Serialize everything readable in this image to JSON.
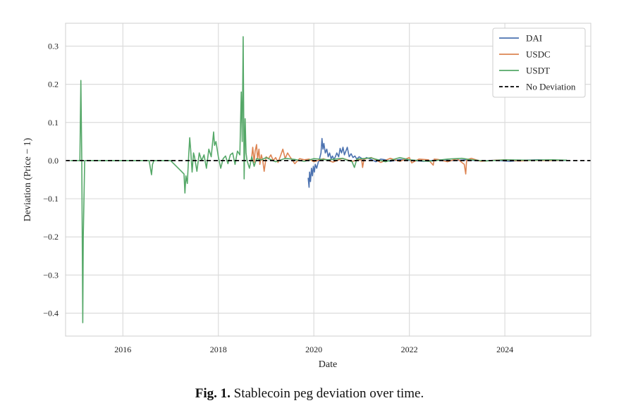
{
  "chart_data": {
    "type": "line",
    "title": "",
    "xlabel": "Date",
    "ylabel": "Deviation (Price − 1)",
    "xlim": [
      2014.8,
      2025.8
    ],
    "ylim": [
      -0.46,
      0.36
    ],
    "x_ticks": [
      2016,
      2018,
      2020,
      2022,
      2024
    ],
    "y_ticks": [
      0.3,
      0.2,
      0.1,
      0.0,
      -0.1,
      -0.2,
      -0.3,
      -0.4
    ],
    "y_tick_labels": [
      "0.3",
      "0.2",
      "0.1",
      "0.0",
      "−0.1",
      "−0.2",
      "−0.3",
      "−0.4"
    ],
    "grid": true,
    "legend_position": "top-right",
    "series": [
      {
        "name": "DAI",
        "color": "#4c72b0",
        "x": [
          2019.88,
          2019.9,
          2019.91,
          2019.93,
          2019.95,
          2019.97,
          2019.99,
          2020.01,
          2020.03,
          2020.06,
          2020.09,
          2020.12,
          2020.15,
          2020.17,
          2020.19,
          2020.21,
          2020.24,
          2020.27,
          2020.3,
          2020.33,
          2020.36,
          2020.39,
          2020.42,
          2020.45,
          2020.48,
          2020.52,
          2020.55,
          2020.58,
          2020.61,
          2020.64,
          2020.67,
          2020.7,
          2020.74,
          2020.78,
          2020.82,
          2020.86,
          2020.9,
          2020.95,
          2021.0,
          2021.05,
          2021.1,
          2021.2,
          2021.3,
          2021.4,
          2021.5,
          2021.6,
          2021.8,
          2022.0,
          2022.3,
          2022.6,
          2022.9,
          2023.2,
          2023.5,
          2023.8,
          2024.1,
          2024.4,
          2024.7,
          2025.0,
          2025.3
        ],
        "y": [
          -0.045,
          -0.07,
          -0.03,
          -0.055,
          -0.02,
          -0.04,
          -0.015,
          -0.03,
          -0.01,
          -0.02,
          -0.005,
          0.005,
          0.02,
          0.058,
          0.03,
          0.045,
          0.02,
          0.03,
          0.01,
          0.02,
          0.005,
          0.012,
          0.003,
          0.01,
          0.02,
          0.01,
          0.032,
          0.02,
          0.035,
          0.015,
          0.025,
          0.035,
          0.01,
          0.018,
          0.008,
          0.012,
          0.004,
          0.01,
          0.006,
          0.002,
          0.008,
          0.003,
          -0.003,
          0.004,
          0.002,
          -0.002,
          0.003,
          0.001,
          -0.002,
          0.002,
          0.0,
          0.002,
          -0.001,
          0.001,
          -0.002,
          0.001,
          0.002,
          0.0,
          0.001
        ]
      },
      {
        "name": "USDC",
        "color": "#dd8452",
        "x": [
          2018.7,
          2018.72,
          2018.75,
          2018.77,
          2018.8,
          2018.82,
          2018.85,
          2018.87,
          2018.9,
          2018.93,
          2018.96,
          2019.0,
          2019.05,
          2019.1,
          2019.15,
          2019.2,
          2019.25,
          2019.3,
          2019.35,
          2019.4,
          2019.45,
          2019.5,
          2019.6,
          2019.7,
          2019.8,
          2019.9,
          2020.0,
          2020.2,
          2020.4,
          2020.6,
          2020.8,
          2021.0,
          2021.02,
          2021.05,
          2021.2,
          2021.4,
          2021.6,
          2021.8,
          2022.0,
          2022.05,
          2022.2,
          2022.4,
          2022.5,
          2022.52,
          2022.6,
          2022.8,
          2023.0,
          2023.15,
          2023.18,
          2023.2,
          2023.3,
          2023.5,
          2023.8,
          2024.0,
          2024.3,
          2024.6,
          2024.9,
          2025.2
        ],
        "y": [
          0.01,
          0.035,
          -0.005,
          0.025,
          0.042,
          0.005,
          0.03,
          -0.01,
          0.015,
          0.0,
          -0.028,
          0.01,
          0.005,
          0.015,
          0.0,
          0.008,
          -0.005,
          0.012,
          0.03,
          0.005,
          0.02,
          0.01,
          -0.008,
          0.005,
          0.002,
          0.004,
          -0.003,
          0.005,
          -0.004,
          0.006,
          -0.002,
          0.003,
          -0.018,
          0.004,
          0.008,
          -0.005,
          0.006,
          -0.002,
          0.008,
          -0.006,
          0.004,
          0.002,
          -0.012,
          0.004,
          0.003,
          -0.003,
          0.005,
          -0.01,
          -0.035,
          0.002,
          0.006,
          -0.002,
          0.001,
          0.002,
          -0.001,
          0.001,
          0.0,
          0.001
        ]
      },
      {
        "name": "USDT",
        "color": "#55a868",
        "x": [
          2014.9,
          2015.1,
          2015.12,
          2015.14,
          2015.16,
          2015.17,
          2015.2,
          2015.5,
          2016.0,
          2016.55,
          2016.6,
          2016.62,
          2016.65,
          2017.0,
          2017.28,
          2017.3,
          2017.32,
          2017.35,
          2017.38,
          2017.4,
          2017.42,
          2017.45,
          2017.48,
          2017.5,
          2017.55,
          2017.6,
          2017.65,
          2017.7,
          2017.75,
          2017.8,
          2017.85,
          2017.9,
          2017.92,
          2017.95,
          2018.0,
          2018.05,
          2018.1,
          2018.15,
          2018.2,
          2018.25,
          2018.3,
          2018.35,
          2018.4,
          2018.45,
          2018.48,
          2018.5,
          2018.52,
          2018.54,
          2018.56,
          2018.58,
          2018.6,
          2018.65,
          2018.7,
          2018.75,
          2018.8,
          2018.9,
          2019.0,
          2019.2,
          2019.4,
          2019.6,
          2019.8,
          2020.0,
          2020.3,
          2020.6,
          2020.8,
          2020.85,
          2020.9,
          2021.2,
          2021.5,
          2021.8,
          2022.0,
          2022.4,
          2022.8,
          2023.1,
          2023.3,
          2023.6,
          2024.0,
          2024.5,
          2025.0,
          2025.3
        ],
        "y": [
          0.0,
          0.0,
          0.21,
          0.0,
          -0.425,
          -0.2,
          0.0,
          0.0,
          0.0,
          0.0,
          -0.037,
          -0.01,
          0.0,
          0.0,
          -0.035,
          -0.085,
          -0.04,
          -0.06,
          0.015,
          0.06,
          0.03,
          -0.03,
          0.02,
          0.01,
          -0.028,
          0.02,
          0.0,
          0.015,
          -0.02,
          0.03,
          0.01,
          0.075,
          0.04,
          0.05,
          0.01,
          -0.02,
          0.005,
          0.012,
          -0.008,
          0.015,
          0.02,
          -0.01,
          0.025,
          0.015,
          0.18,
          0.05,
          0.325,
          -0.048,
          0.11,
          0.02,
          0.0,
          -0.02,
          0.01,
          -0.015,
          0.005,
          0.002,
          0.008,
          -0.003,
          0.006,
          0.003,
          -0.002,
          0.005,
          0.002,
          0.006,
          -0.003,
          -0.018,
          0.004,
          0.007,
          -0.003,
          0.008,
          0.002,
          -0.002,
          0.004,
          0.006,
          0.002,
          -0.001,
          0.002,
          0.001,
          0.002,
          0.001
        ]
      },
      {
        "name": "No Deviation",
        "color": "#000000",
        "style": "dashed",
        "x": [
          2014.8,
          2025.8
        ],
        "y": [
          0.0,
          0.0
        ]
      }
    ]
  },
  "caption": {
    "label": "Fig. 1.",
    "text": " Stablecoin peg deviation over time."
  }
}
